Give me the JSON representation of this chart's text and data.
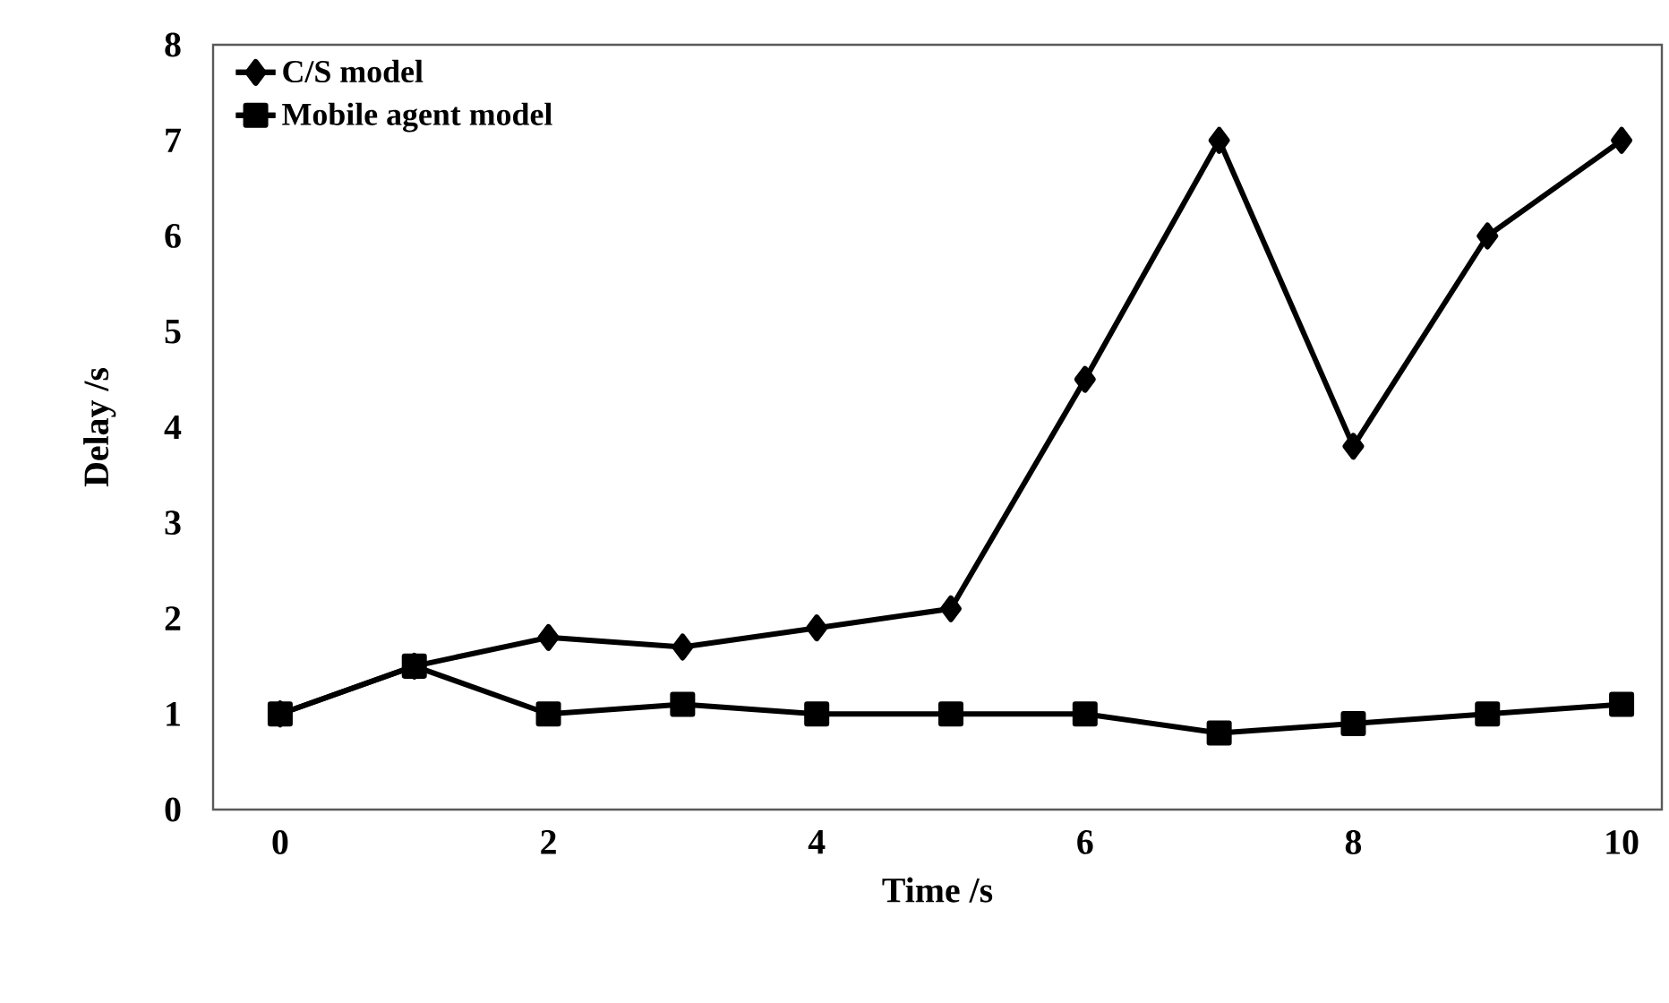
{
  "chart_data": {
    "type": "line",
    "xlabel": "Time /s",
    "ylabel": "Delay /s",
    "x": [
      0,
      1,
      2,
      3,
      4,
      5,
      6,
      7,
      8,
      9,
      10
    ],
    "series": [
      {
        "name": "C/S model",
        "color": "#000000",
        "marker": "diamond",
        "values": [
          1.0,
          1.5,
          1.8,
          1.7,
          1.9,
          2.1,
          4.5,
          7.0,
          3.8,
          6.0,
          7.0
        ]
      },
      {
        "name": "Mobile agent model",
        "color": "#000000",
        "marker": "square",
        "values": [
          1.0,
          1.5,
          1.0,
          1.1,
          1.0,
          1.0,
          1.0,
          0.8,
          0.9,
          1.0,
          1.1
        ]
      }
    ],
    "xlim": [
      -0.5,
      10.3
    ],
    "ylim": [
      0,
      8
    ],
    "xticks": [
      0,
      2,
      4,
      6,
      8,
      10
    ],
    "yticks": [
      0,
      1,
      2,
      3,
      4,
      5,
      6,
      7,
      8
    ],
    "grid": false,
    "legend": "top left",
    "line_style": "solid"
  }
}
